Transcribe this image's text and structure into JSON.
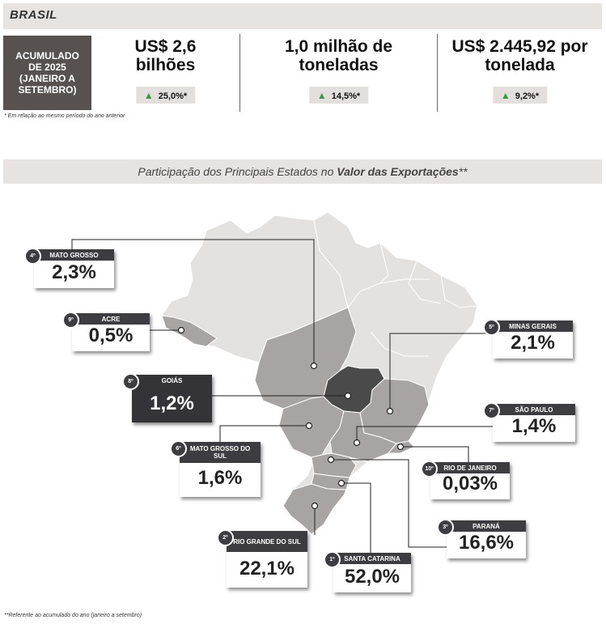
{
  "header": {
    "title": "BRASIL"
  },
  "period": {
    "label": "ACUMULADO DE 2025 (JANEIRO A SETEMBRO)"
  },
  "kpis": [
    {
      "value": "US$ 2,6 bilhões",
      "change": "25,0%*",
      "arrow": "up-arrow-icon",
      "color": "#2ea043"
    },
    {
      "value": "1,0 milhão de toneladas",
      "change": "14,5%*",
      "arrow": "up-arrow-icon",
      "color": "#2ea043"
    },
    {
      "value": "US$ 2.445,92 por tonelada",
      "change": "9,2%*",
      "arrow": "up-arrow-icon",
      "color": "#2ea043"
    }
  ],
  "footnote_top": "* Em relação ao mesmo período do ano anterior",
  "section": {
    "title_plain": "Participação dos Principais Estados no ",
    "title_bold": "Valor das Exportações",
    "title_suffix": "**"
  },
  "states": [
    {
      "rank": "4º",
      "name": "MATO GROSSO",
      "share": "2,3%",
      "highlight": false
    },
    {
      "rank": "9º",
      "name": "ACRE",
      "share": "0,5%",
      "highlight": false
    },
    {
      "rank": "8º",
      "name": "GOIÁS",
      "share": "1,2%",
      "highlight": true
    },
    {
      "rank": "6º",
      "name": "MATO GROSSO DO SUL",
      "share": "1,6%",
      "highlight": false
    },
    {
      "rank": "2º",
      "name": "RIO GRANDE DO SUL",
      "share": "22,1%",
      "highlight": false
    },
    {
      "rank": "1º",
      "name": "SANTA CATARINA",
      "share": "52,0%",
      "highlight": false
    },
    {
      "rank": "5º",
      "name": "MINAS GERAIS",
      "share": "2,1%",
      "highlight": false
    },
    {
      "rank": "7º",
      "name": "SÃO PAULO",
      "share": "1,4%",
      "highlight": false
    },
    {
      "rank": "10º",
      "name": "RIO DE JANEIRO",
      "share": "0,03%",
      "highlight": false
    },
    {
      "rank": "3º",
      "name": "PARANÁ",
      "share": "16,6%",
      "highlight": false
    }
  ],
  "colors": {
    "country": "#e4e2e0",
    "ranked_state": "#a9a4a4",
    "goias": "#4a4a4a",
    "card_header": "#3d3c41"
  },
  "footnote_bottom": "**Referente ao acumulado do ano (janeiro a setembro)"
}
